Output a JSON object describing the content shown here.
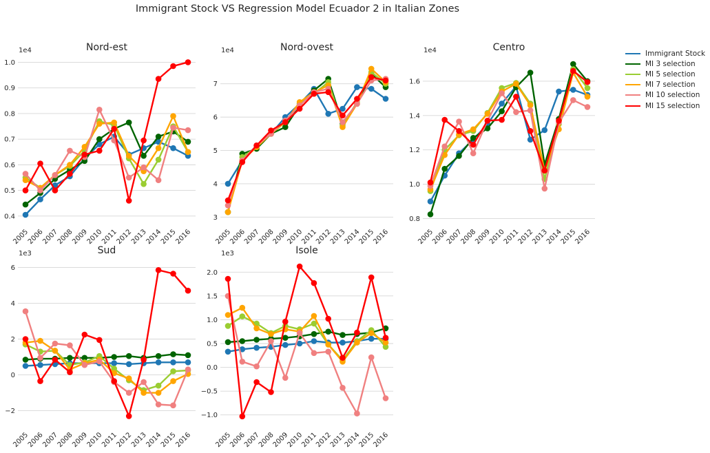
{
  "figure_title": "Immigrant Stock VS Regression Model Ecuador 2 in Italian Zones",
  "legend_labels": [
    "Immigrant Stock",
    "MI 3 selection",
    "MI 5 selection",
    "MI 7 selection",
    "MI 10 selection",
    "MI 15 selection"
  ],
  "colors": {
    "Immigrant Stock": "#1f77b4",
    "MI 3 selection": "#006400",
    "MI 5 selection": "#9acd32",
    "MI 7 selection": "#ffa500",
    "MI 10 selection": "#f08080",
    "MI 15 selection": "#ff0000"
  },
  "chart_data": [
    {
      "type": "line",
      "title": "Nord-est",
      "x": [
        "2005",
        "2006",
        "2007",
        "2008",
        "2009",
        "2010",
        "2011",
        "2012",
        "2013",
        "2014",
        "2015",
        "2016"
      ],
      "scale_label": "1e4",
      "ylim": [
        0.37,
        1.02
      ],
      "yticks": [
        0.4,
        0.5,
        0.6,
        0.7,
        0.8,
        0.9,
        1.0
      ],
      "ytick_labels": [
        "0.4",
        "0.5",
        "0.6",
        "0.7",
        "0.8",
        "0.9",
        "1.0"
      ],
      "series": [
        {
          "name": "Immigrant Stock",
          "values": [
            0.405,
            0.465,
            0.52,
            0.555,
            0.625,
            0.68,
            0.71,
            0.64,
            0.665,
            0.69,
            0.665,
            0.635
          ]
        },
        {
          "name": "MI 3 selection",
          "values": [
            0.445,
            0.49,
            0.545,
            0.58,
            0.615,
            0.7,
            0.74,
            0.765,
            0.635,
            0.71,
            0.73,
            0.69
          ]
        },
        {
          "name": "MI 5 selection",
          "values": [
            0.55,
            0.51,
            0.56,
            0.595,
            0.655,
            0.77,
            0.755,
            0.625,
            0.525,
            0.62,
            0.75,
            0.65
          ]
        },
        {
          "name": "MI 7 selection",
          "values": [
            0.54,
            0.51,
            0.56,
            0.6,
            0.67,
            0.76,
            0.765,
            0.635,
            0.575,
            0.665,
            0.79,
            0.65
          ]
        },
        {
          "name": "MI 10 selection",
          "values": [
            0.565,
            0.5,
            0.56,
            0.655,
            0.63,
            0.815,
            0.695,
            0.55,
            0.59,
            0.54,
            0.745,
            0.735
          ]
        },
        {
          "name": "MI 15 selection",
          "values": [
            0.5,
            0.605,
            0.5,
            0.565,
            0.64,
            0.655,
            0.74,
            0.46,
            0.695,
            0.935,
            0.985,
            1.0
          ]
        }
      ]
    },
    {
      "type": "line",
      "title": "Nord-ovest",
      "x": [
        "2005",
        "2006",
        "2007",
        "2008",
        "2009",
        "2010",
        "2011",
        "2012",
        "2013",
        "2014",
        "2015",
        "2016"
      ],
      "scale_label": "1e4",
      "ylim": [
        2.8,
        7.8
      ],
      "yticks": [
        3,
        4,
        5,
        6,
        7
      ],
      "ytick_labels": [
        "3",
        "4",
        "5",
        "6",
        "7"
      ],
      "series": [
        {
          "name": "Immigrant Stock",
          "values": [
            4.0,
            4.7,
            5.15,
            5.5,
            6.0,
            6.4,
            6.85,
            6.1,
            6.25,
            6.9,
            6.85,
            6.55
          ]
        },
        {
          "name": "MI 3 selection",
          "values": [
            3.15,
            4.9,
            5.05,
            5.5,
            5.7,
            6.35,
            6.8,
            7.15,
            5.8,
            6.4,
            7.3,
            6.9
          ]
        },
        {
          "name": "MI 5 selection",
          "values": [
            3.15,
            4.8,
            5.1,
            5.5,
            5.85,
            6.4,
            6.7,
            7.05,
            5.75,
            6.45,
            7.35,
            7.0
          ]
        },
        {
          "name": "MI 7 selection",
          "values": [
            3.15,
            4.7,
            5.1,
            5.5,
            5.85,
            6.45,
            6.75,
            6.95,
            5.7,
            6.4,
            7.45,
            7.05
          ]
        },
        {
          "name": "MI 10 selection",
          "values": [
            3.35,
            4.7,
            5.15,
            5.5,
            5.9,
            6.35,
            6.75,
            6.85,
            5.85,
            6.4,
            7.1,
            7.15
          ]
        },
        {
          "name": "MI 15 selection",
          "values": [
            3.5,
            4.65,
            5.15,
            5.6,
            5.85,
            6.25,
            6.7,
            6.75,
            6.05,
            6.55,
            7.2,
            7.1
          ]
        }
      ]
    },
    {
      "type": "line",
      "title": "Centro",
      "x": [
        "2005",
        "2006",
        "2007",
        "2008",
        "2009",
        "2010",
        "2011",
        "2012",
        "2013",
        "2014",
        "2015",
        "2016"
      ],
      "scale_label": "1e4",
      "ylim": [
        0.77,
        1.74
      ],
      "yticks": [
        0.8,
        1.0,
        1.2,
        1.4,
        1.6
      ],
      "ytick_labels": [
        "0.8",
        "1.0",
        "1.2",
        "1.4",
        "1.6"
      ],
      "series": [
        {
          "name": "Immigrant Stock",
          "values": [
            0.9,
            1.05,
            1.18,
            1.26,
            1.35,
            1.47,
            1.57,
            1.26,
            1.315,
            1.54,
            1.55,
            1.52
          ]
        },
        {
          "name": "MI 3 selection",
          "values": [
            0.825,
            1.09,
            1.165,
            1.27,
            1.325,
            1.425,
            1.565,
            1.65,
            1.115,
            1.38,
            1.7,
            1.6
          ]
        },
        {
          "name": "MI 5 selection",
          "values": [
            0.96,
            1.2,
            1.285,
            1.31,
            1.415,
            1.56,
            1.59,
            1.47,
            1.03,
            1.35,
            1.67,
            1.56
          ]
        },
        {
          "name": "MI 7 selection",
          "values": [
            0.97,
            1.17,
            1.29,
            1.32,
            1.41,
            1.54,
            1.585,
            1.46,
            1.08,
            1.32,
            1.65,
            1.51
          ]
        },
        {
          "name": "MI 10 selection",
          "values": [
            0.99,
            1.22,
            1.365,
            1.18,
            1.37,
            1.53,
            1.42,
            1.43,
            0.975,
            1.36,
            1.49,
            1.45
          ]
        },
        {
          "name": "MI 15 selection",
          "values": [
            1.01,
            1.375,
            1.31,
            1.23,
            1.37,
            1.375,
            1.51,
            1.31,
            1.08,
            1.37,
            1.66,
            1.595
          ]
        }
      ]
    },
    {
      "type": "line",
      "title": "Sud",
      "x": [
        "2005",
        "2006",
        "2007",
        "2008",
        "2009",
        "2010",
        "2011",
        "2012",
        "2013",
        "2014",
        "2015",
        "2016"
      ],
      "scale_label": "1e3",
      "ylim": [
        -2.9,
        6.4
      ],
      "yticks": [
        -2,
        0,
        2,
        4,
        6
      ],
      "ytick_labels": [
        "−2",
        "0",
        "2",
        "4",
        "6"
      ],
      "series": [
        {
          "name": "Immigrant Stock",
          "values": [
            0.5,
            0.55,
            0.6,
            0.65,
            0.65,
            0.65,
            0.65,
            0.6,
            0.65,
            0.7,
            0.7,
            0.7
          ]
        },
        {
          "name": "MI 3 selection",
          "values": [
            0.85,
            0.9,
            0.9,
            0.95,
            0.95,
            0.95,
            1.0,
            1.05,
            0.95,
            1.05,
            1.15,
            1.1
          ]
        },
        {
          "name": "MI 5 selection",
          "values": [
            1.7,
            1.3,
            1.35,
            0.55,
            0.7,
            1.05,
            0.35,
            -0.3,
            -0.85,
            -0.6,
            0.2,
            0.25
          ]
        },
        {
          "name": "MI 7 selection",
          "values": [
            1.8,
            1.9,
            1.35,
            0.3,
            0.65,
            0.85,
            0.1,
            -0.2,
            -1.0,
            -1.0,
            -0.35,
            0.05
          ]
        },
        {
          "name": "MI 10 selection",
          "values": [
            3.55,
            0.95,
            1.75,
            1.65,
            0.55,
            0.75,
            -0.4,
            -1.0,
            -0.4,
            -1.65,
            -1.7,
            0.3
          ]
        },
        {
          "name": "MI 15 selection",
          "values": [
            2.0,
            -0.35,
            0.85,
            0.15,
            2.25,
            1.95,
            -0.35,
            -2.3,
            0.85,
            5.85,
            5.65,
            4.7
          ]
        }
      ]
    },
    {
      "type": "line",
      "title": "Isole",
      "x": [
        "2005",
        "2006",
        "2007",
        "2008",
        "2009",
        "2010",
        "2011",
        "2012",
        "2013",
        "2014",
        "2015",
        "2016"
      ],
      "scale_label": "1e3",
      "ylim": [
        -1.25,
        2.25
      ],
      "yticks": [
        -1.0,
        -0.5,
        0.0,
        0.5,
        1.0,
        1.5,
        2.0
      ],
      "ytick_labels": [
        "−1.0",
        "−0.5",
        "0.0",
        "0.5",
        "1.0",
        "1.5",
        "2.0"
      ],
      "series": [
        {
          "name": "Immigrant Stock",
          "values": [
            0.33,
            0.38,
            0.41,
            0.43,
            0.47,
            0.5,
            0.55,
            0.52,
            0.52,
            0.55,
            0.6,
            0.6
          ]
        },
        {
          "name": "MI 3 selection",
          "values": [
            0.53,
            0.55,
            0.58,
            0.6,
            0.62,
            0.65,
            0.7,
            0.75,
            0.68,
            0.7,
            0.73,
            0.82
          ]
        },
        {
          "name": "MI 5 selection",
          "values": [
            0.87,
            1.07,
            0.92,
            0.72,
            0.87,
            0.8,
            0.92,
            0.48,
            0.15,
            0.55,
            0.78,
            0.43
          ]
        },
        {
          "name": "MI 7 selection",
          "values": [
            1.1,
            1.25,
            0.82,
            0.7,
            0.8,
            0.75,
            1.08,
            0.48,
            0.12,
            0.52,
            0.72,
            0.52
          ]
        },
        {
          "name": "MI 10 selection",
          "values": [
            1.5,
            0.12,
            0.02,
            0.55,
            -0.22,
            0.72,
            0.3,
            0.33,
            -0.43,
            -0.97,
            0.21,
            -0.65
          ]
        },
        {
          "name": "MI 15 selection",
          "values": [
            1.86,
            -1.03,
            -0.31,
            -0.52,
            0.96,
            2.12,
            1.77,
            1.02,
            0.2,
            0.73,
            1.89,
            0.62
          ]
        }
      ]
    }
  ]
}
